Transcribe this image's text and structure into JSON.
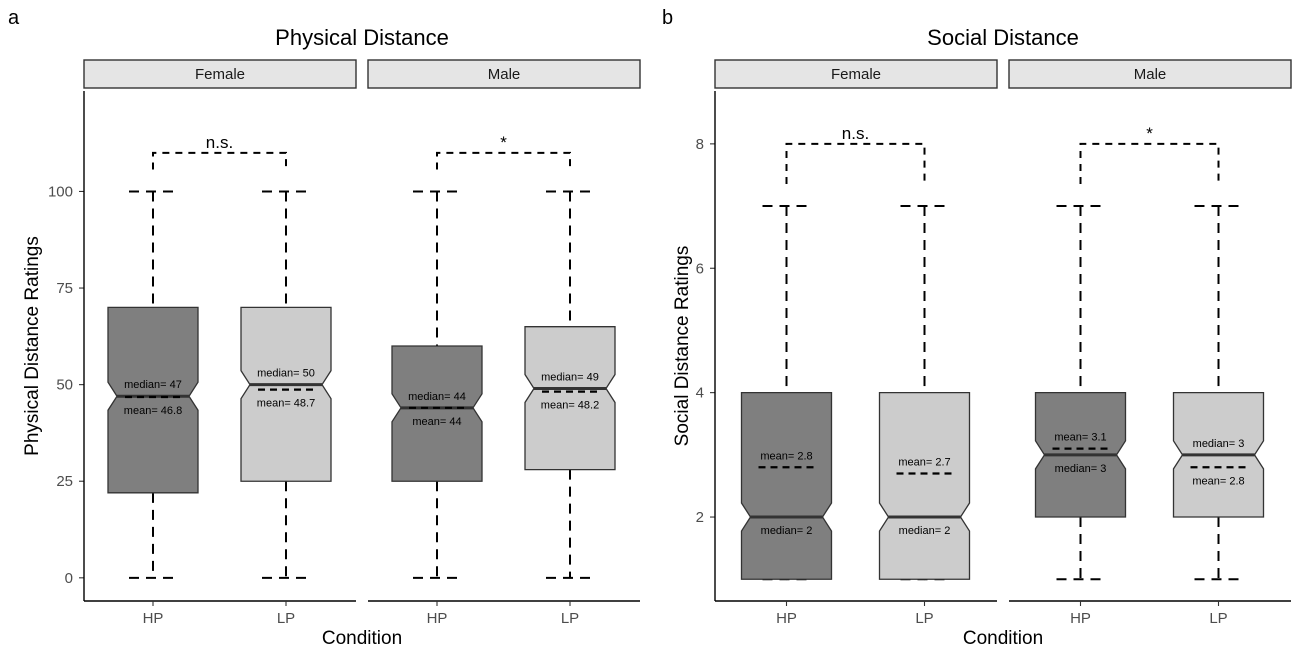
{
  "panel_labels": [
    "a",
    "b"
  ],
  "chart_data": [
    {
      "type": "boxplot",
      "title": "Physical Distance",
      "ylabel": "Physical Distance Ratings",
      "xlabel": "Condition",
      "ylim": [
        -6,
        126
      ],
      "yticks": [
        "0",
        "25",
        "50",
        "75",
        "100"
      ],
      "colors": {
        "HP": "#7f7f7f",
        "LP": "#cccccc"
      },
      "facets": [
        {
          "name": "Female",
          "significance": "n.s.",
          "bracket_y": 110,
          "groups": [
            {
              "category": "HP",
              "min": 0,
              "q1": 22,
              "median": 47,
              "q3": 70,
              "max": 100,
              "mean": 46.8,
              "median_label": "median= 47",
              "mean_label": "mean= 46.8",
              "median_label_pos": "above"
            },
            {
              "category": "LP",
              "min": 0,
              "q1": 25,
              "median": 50,
              "q3": 70,
              "max": 100,
              "mean": 48.7,
              "median_label": "median= 50",
              "mean_label": "mean= 48.7",
              "median_label_pos": "above"
            }
          ]
        },
        {
          "name": "Male",
          "significance": "*",
          "bracket_y": 110,
          "groups": [
            {
              "category": "HP",
              "min": 0,
              "q1": 25,
              "median": 44,
              "q3": 60,
              "max": 100,
              "mean": 44,
              "median_label": "median= 44",
              "mean_label": "mean= 44",
              "median_label_pos": "above"
            },
            {
              "category": "LP",
              "min": 0,
              "q1": 28,
              "median": 49,
              "q3": 65,
              "max": 100,
              "mean": 48.2,
              "median_label": "median= 49",
              "mean_label": "mean= 48.2",
              "median_label_pos": "above"
            }
          ]
        }
      ]
    },
    {
      "type": "boxplot",
      "title": "Social Distance",
      "ylabel": "Social Distance Ratings",
      "xlabel": "Condition",
      "ylim": [
        0.65,
        8.85
      ],
      "yticks": [
        "2",
        "4",
        "6",
        "8"
      ],
      "colors": {
        "HP": "#7f7f7f",
        "LP": "#cccccc"
      },
      "facets": [
        {
          "name": "Female",
          "significance": "n.s.",
          "bracket_y": 8,
          "groups": [
            {
              "category": "HP",
              "min": 1,
              "q1": 1,
              "median": 2,
              "q3": 4,
              "max": 7,
              "mean": 2.8,
              "median_label": "median= 2",
              "mean_label": "mean= 2.8",
              "median_label_pos": "below"
            },
            {
              "category": "LP",
              "min": 1,
              "q1": 1,
              "median": 2,
              "q3": 4,
              "max": 7,
              "mean": 2.7,
              "median_label": "median= 2",
              "mean_label": "mean= 2.7",
              "median_label_pos": "below"
            }
          ]
        },
        {
          "name": "Male",
          "significance": "*",
          "bracket_y": 8,
          "groups": [
            {
              "category": "HP",
              "min": 1,
              "q1": 2,
              "median": 3,
              "q3": 4,
              "max": 7,
              "mean": 3.1,
              "median_label": "median= 3",
              "mean_label": "mean= 3.1",
              "median_label_pos": "below"
            },
            {
              "category": "LP",
              "min": 1,
              "q1": 2,
              "median": 3,
              "q3": 4,
              "max": 7,
              "mean": 2.8,
              "median_label": "median= 3",
              "mean_label": "mean= 2.8",
              "median_label_pos": "above"
            }
          ]
        }
      ]
    }
  ]
}
